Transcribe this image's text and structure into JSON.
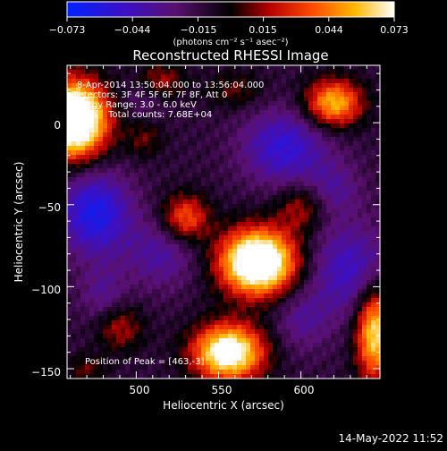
{
  "colorbar": {
    "ticks": [
      "−0.073",
      "−0.044",
      "−0.015",
      "0.015",
      "0.044",
      "0.073"
    ],
    "unit_label": "(photons cm⁻² s⁻¹ asec⁻²)"
  },
  "chart_data": {
    "type": "heatmap",
    "title": "Reconstructed RHESSI Image",
    "xlabel": "Heliocentric X (arcsec)",
    "ylabel": "Heliocentric Y (arcsec)",
    "xlim": [
      458,
      648
    ],
    "ylim": [
      -156,
      35
    ],
    "x_ticks": [
      500,
      550,
      600
    ],
    "y_ticks": [
      0,
      -50,
      -100,
      -150
    ],
    "x_tick_labels": [
      "500",
      "550",
      "600"
    ],
    "y_tick_labels": [
      "0",
      "−50",
      "−100",
      "−150"
    ],
    "colorbar_range": [
      -0.073,
      0.073
    ],
    "colormap_hint": "blue-purple-black-red-orange-yellow-white",
    "info_lines": [
      "8-Apr-2014 13:50:04.000 to 13:56:04.000",
      "Detectors: 3F 4F 5F 6F 7F 8F, Att 0",
      "Energy Range: 3.0 - 6.0 keV",
      "Clean    Total counts: 7.68E+04"
    ],
    "peak_label": "Position of Peak = [463,-3]",
    "sources": [
      {
        "x": 462,
        "y": 2,
        "amp": 0.13,
        "sx": 14,
        "sy": 16
      },
      {
        "x": 574,
        "y": -85,
        "amp": 0.12,
        "sx": 16,
        "sy": 14
      },
      {
        "x": 556,
        "y": -140,
        "amp": 0.1,
        "sx": 15,
        "sy": 12
      },
      {
        "x": 530,
        "y": -58,
        "amp": 0.05,
        "sx": 10,
        "sy": 10
      },
      {
        "x": 620,
        "y": 12,
        "amp": 0.07,
        "sx": 12,
        "sy": 10
      },
      {
        "x": 645,
        "y": -128,
        "amp": 0.08,
        "sx": 8,
        "sy": 20
      },
      {
        "x": 490,
        "y": -125,
        "amp": 0.03,
        "sx": 10,
        "sy": 10
      },
      {
        "x": 600,
        "y": -52,
        "amp": 0.03,
        "sx": 10,
        "sy": 10
      },
      {
        "x": 515,
        "y": 25,
        "amp": 0.03,
        "sx": 10,
        "sy": 8
      },
      {
        "x": 560,
        "y": 20,
        "amp": 0.02,
        "sx": 12,
        "sy": 8
      },
      {
        "x": 505,
        "y": -10,
        "amp": 0.02,
        "sx": 8,
        "sy": 8
      },
      {
        "x": 470,
        "y": -150,
        "amp": 0.02,
        "sx": 8,
        "sy": 6
      },
      {
        "x": 475,
        "y": -55,
        "amp": -0.05,
        "sx": 15,
        "sy": 18
      },
      {
        "x": 590,
        "y": -15,
        "amp": -0.04,
        "sx": 18,
        "sy": 16
      },
      {
        "x": 515,
        "y": -80,
        "amp": -0.025,
        "sx": 15,
        "sy": 15
      },
      {
        "x": 630,
        "y": -90,
        "amp": -0.035,
        "sx": 18,
        "sy": 20
      },
      {
        "x": 620,
        "y": -40,
        "amp": -0.02,
        "sx": 12,
        "sy": 12
      },
      {
        "x": 505,
        "y": 15,
        "amp": -0.015,
        "sx": 10,
        "sy": 8
      },
      {
        "x": 480,
        "y": -105,
        "amp": -0.02,
        "sx": 10,
        "sy": 12
      },
      {
        "x": 600,
        "y": -120,
        "amp": -0.02,
        "sx": 12,
        "sy": 14
      }
    ]
  },
  "footer": {
    "date": "14-May-2022 11:52"
  }
}
